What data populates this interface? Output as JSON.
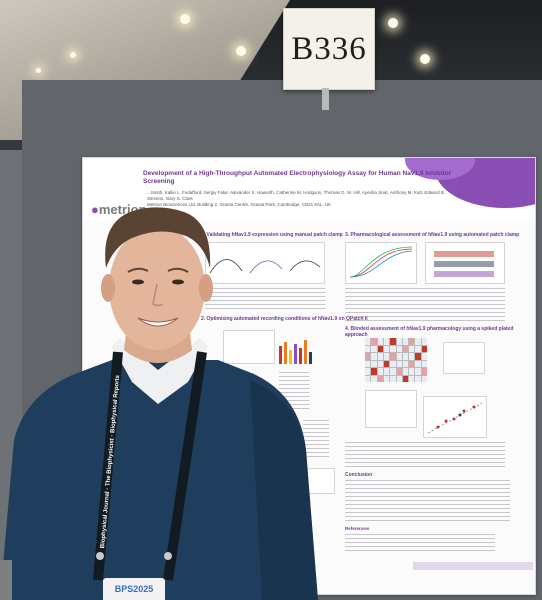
{
  "scene": {
    "booth_sign": "B336",
    "badge_text": "BPS2025",
    "lanyard_text": "Biophysical Journal · The Biophysicist · Biophysical Reports"
  },
  "poster": {
    "company": "metrion",
    "company_sub": "BIOSCIENCE",
    "title_lines": [
      "Development of a High-Throughput Automated Electrophysiology Assay for Human Nav1.9 Inhibitor Screening"
    ],
    "authors": "...Smith, Kallie L. Fodafford, Sergiy Falar, Alexander S. Haworth, Catherine M. Hodgson, Thomas G. M. Hill, Ayesha Jinat, Anthony M. Kutt, Edward B. Stevens, Gary S. Clark",
    "affiliation": "Metrion Biosciences Ltd, Building 2, Granta Centre, Granta Park, Cambridge, CB21 6AL, UK",
    "sections": {
      "s1": "1. Validating hNav1.9 expression using manual patch clamp",
      "s2": "2. Optimising automated recording conditions of hNav1.9 on QPatch II",
      "s3": "3. Pharmacological assessment of hNav1.9 using automated patch clamp",
      "s4": "4. Blinded assessment of hNav1.9 pharmacology using a spiked plated approach",
      "conclusion": "Conclusion",
      "references": "References"
    }
  },
  "colors": {
    "poster_accent": "#8a4fb4",
    "poster_title": "#6b3a93",
    "sweater": "#1f3d5c",
    "booth_wall": "#62666b"
  }
}
